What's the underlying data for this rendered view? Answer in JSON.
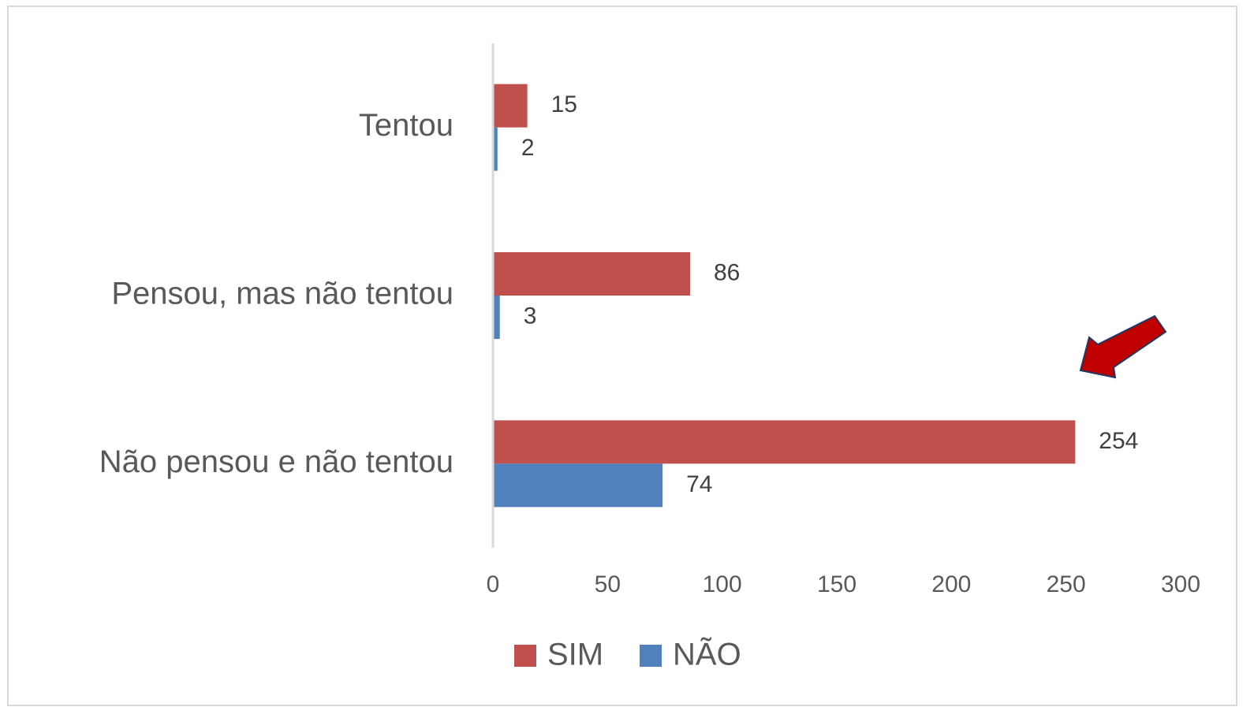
{
  "chart_data": {
    "type": "hbar",
    "categories": [
      "Tentou",
      "Pensou, mas não tentou",
      "Não pensou e não tentou"
    ],
    "series": [
      {
        "name": "SIM",
        "color": "#c0504d",
        "values": [
          15,
          86,
          254
        ]
      },
      {
        "name": "NÃO",
        "color": "#4f81bd",
        "values": [
          2,
          3,
          74
        ]
      }
    ],
    "xlim": [
      0,
      300
    ],
    "xticks": [
      0,
      50,
      100,
      150,
      200,
      250,
      300
    ],
    "grid": false,
    "legend": "bottom"
  }
}
